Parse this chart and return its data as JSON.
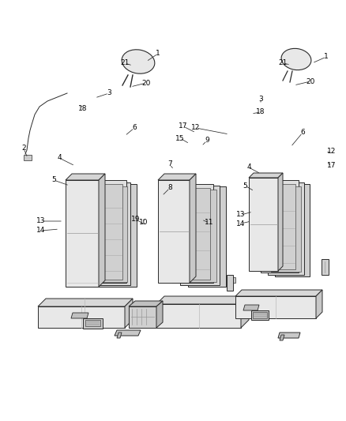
{
  "bg_color": "#ffffff",
  "fig_width": 4.38,
  "fig_height": 5.33,
  "dpi": 100,
  "line_color": "#2a2a2a",
  "fill_light": "#f0f0f0",
  "fill_mid": "#d8d8d8",
  "fill_dark": "#b8b8b8",
  "fill_frame": "#c8c8c8",
  "text_color": "#000000",
  "font_size": 6.5
}
